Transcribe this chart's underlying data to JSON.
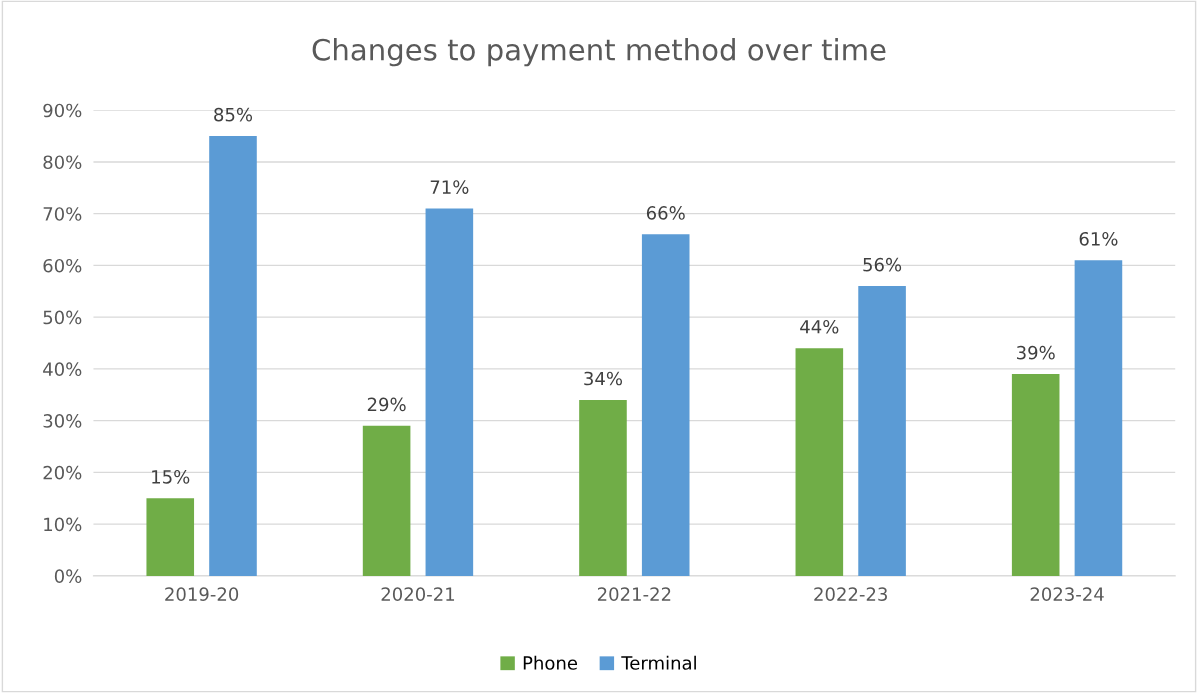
{
  "chart_data": {
    "type": "bar",
    "title": "Changes to payment method over time",
    "categories": [
      "2019-20",
      "2020-21",
      "2021-22",
      "2022-23",
      "2023-24"
    ],
    "series": [
      {
        "name": "Phone",
        "color": "#70ad47",
        "values": [
          15,
          29,
          34,
          44,
          39
        ],
        "value_labels": [
          "15%",
          "29%",
          "34%",
          "44%",
          "39%"
        ]
      },
      {
        "name": "Terminal",
        "color": "#5b9bd5",
        "values": [
          85,
          71,
          66,
          56,
          61
        ],
        "value_labels": [
          "85%",
          "71%",
          "66%",
          "56%",
          "61%"
        ]
      }
    ],
    "ylim": [
      0,
      90
    ],
    "yticks": [
      {
        "value": 0,
        "label": "0%"
      },
      {
        "value": 10,
        "label": "10%"
      },
      {
        "value": 20,
        "label": "20%"
      },
      {
        "value": 30,
        "label": "30%"
      },
      {
        "value": 40,
        "label": "40%"
      },
      {
        "value": 50,
        "label": "50%"
      },
      {
        "value": 60,
        "label": "60%"
      },
      {
        "value": 70,
        "label": "70%"
      },
      {
        "value": 80,
        "label": "80%"
      },
      {
        "value": 90,
        "label": "90%"
      }
    ],
    "grid": "y",
    "legend": "bottom"
  }
}
